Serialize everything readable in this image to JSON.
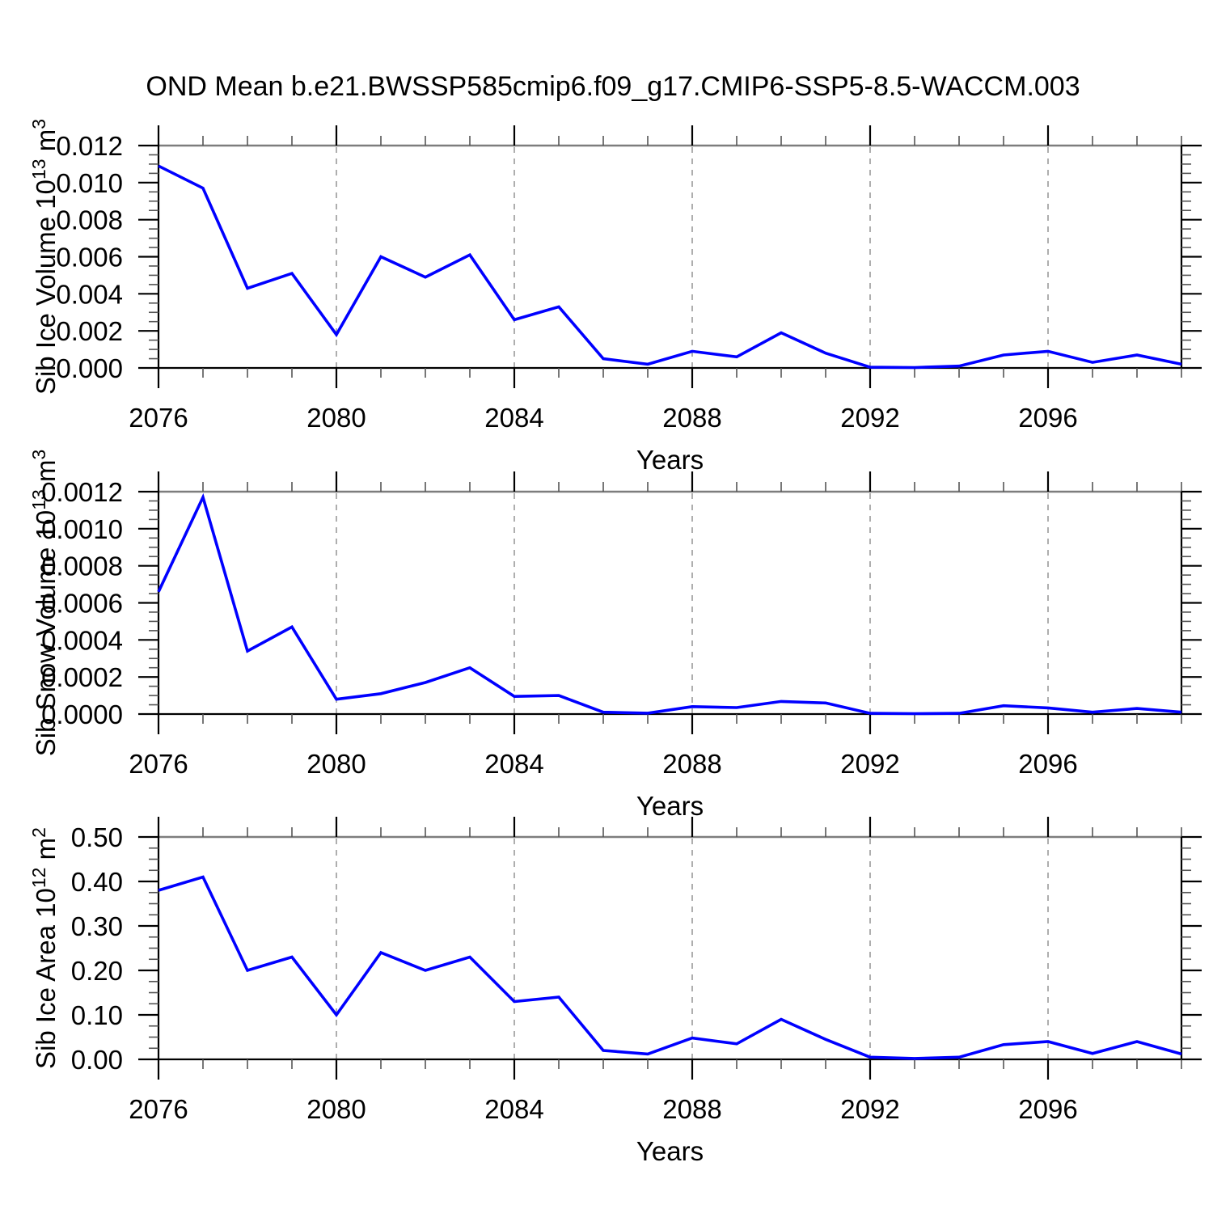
{
  "title": "OND Mean b.e21.BWSSP585cmip6.f09_g17.CMIP6-SSP5-8.5-WACCM.003",
  "colors": {
    "line": "#0000FF",
    "grid_dashed": "#8C8C8C",
    "frame": "#000000",
    "frame_top": "#7D7D7D",
    "major_tick": "#000000",
    "minor_tick": "#555555",
    "text": "#000000"
  },
  "chart_data": [
    {
      "type": "line",
      "id": "sib-ice-volume",
      "ylabel": "Sib Ice Volume 10^13 m^3",
      "ylabel_parts": [
        {
          "text": "Sib Ice Volume 10"
        },
        {
          "text": "13",
          "sup": true
        },
        {
          "text": " m"
        },
        {
          "text": "3",
          "sup": true
        }
      ],
      "xlabel": "Years",
      "xlim": [
        2076,
        2099
      ],
      "ylim": [
        0,
        0.012
      ],
      "xticks_major": [
        2076,
        2080,
        2084,
        2088,
        2092,
        2096
      ],
      "xtick_minor_step": 1,
      "grid_x_dashed": [
        2080,
        2084,
        2088,
        2092,
        2096
      ],
      "ytick_step": 0.002,
      "ytick_minor_step": 0.0005,
      "ytick_decimals": 3,
      "x": [
        2076,
        2077,
        2078,
        2079,
        2080,
        2081,
        2082,
        2083,
        2084,
        2085,
        2086,
        2087,
        2088,
        2089,
        2090,
        2091,
        2092,
        2093,
        2094,
        2095,
        2096,
        2097,
        2098,
        2099
      ],
      "values": [
        0.0109,
        0.0097,
        0.0043,
        0.0051,
        0.0018,
        0.006,
        0.0049,
        0.0061,
        0.0026,
        0.0033,
        0.0005,
        0.0002,
        0.0009,
        0.0006,
        0.0019,
        0.0008,
        4e-05,
        2e-05,
        0.0001,
        0.0007,
        0.0009,
        0.0003,
        0.0007,
        0.0002
      ]
    },
    {
      "type": "line",
      "id": "sib-snow-volume",
      "ylabel": "Sib Snow Volume 10^13 m^3",
      "ylabel_parts": [
        {
          "text": "Sib Snow Volume 10"
        },
        {
          "text": "13",
          "sup": true
        },
        {
          "text": " m"
        },
        {
          "text": "3",
          "sup": true
        }
      ],
      "xlabel": "Years",
      "xlim": [
        2076,
        2099
      ],
      "ylim": [
        0,
        0.0012
      ],
      "xticks_major": [
        2076,
        2080,
        2084,
        2088,
        2092,
        2096
      ],
      "xtick_minor_step": 1,
      "grid_x_dashed": [
        2080,
        2084,
        2088,
        2092,
        2096
      ],
      "ytick_step": 0.0002,
      "ytick_minor_step": 5e-05,
      "ytick_decimals": 4,
      "x": [
        2076,
        2077,
        2078,
        2079,
        2080,
        2081,
        2082,
        2083,
        2084,
        2085,
        2086,
        2087,
        2088,
        2089,
        2090,
        2091,
        2092,
        2093,
        2094,
        2095,
        2096,
        2097,
        2098,
        2099
      ],
      "values": [
        0.00066,
        0.00117,
        0.00034,
        0.00047,
        8e-05,
        0.00011,
        0.00017,
        0.00025,
        9.5e-05,
        0.0001,
        1e-05,
        5e-06,
        4e-05,
        3.5e-05,
        6.8e-05,
        6e-05,
        4e-06,
        2e-06,
        4e-06,
        4.5e-05,
        3.3e-05,
        1e-05,
        3e-05,
        1e-05
      ]
    },
    {
      "type": "line",
      "id": "sib-ice-area",
      "ylabel": "Sib Ice Area 10^12 m^2",
      "ylabel_parts": [
        {
          "text": "Sib Ice Area 10"
        },
        {
          "text": "12",
          "sup": true
        },
        {
          "text": " m"
        },
        {
          "text": "2",
          "sup": true
        }
      ],
      "xlabel": "Years",
      "xlim": [
        2076,
        2099
      ],
      "ylim": [
        0,
        0.5
      ],
      "xticks_major": [
        2076,
        2080,
        2084,
        2088,
        2092,
        2096
      ],
      "xtick_minor_step": 1,
      "grid_x_dashed": [
        2080,
        2084,
        2088,
        2092,
        2096
      ],
      "ytick_step": 0.1,
      "ytick_minor_step": 0.025,
      "ytick_decimals": 2,
      "x": [
        2076,
        2077,
        2078,
        2079,
        2080,
        2081,
        2082,
        2083,
        2084,
        2085,
        2086,
        2087,
        2088,
        2089,
        2090,
        2091,
        2092,
        2093,
        2094,
        2095,
        2096,
        2097,
        2098,
        2099
      ],
      "values": [
        0.38,
        0.41,
        0.2,
        0.23,
        0.1,
        0.24,
        0.2,
        0.23,
        0.13,
        0.14,
        0.02,
        0.012,
        0.048,
        0.035,
        0.09,
        0.045,
        0.005,
        0.002,
        0.005,
        0.033,
        0.04,
        0.013,
        0.04,
        0.012
      ]
    }
  ]
}
